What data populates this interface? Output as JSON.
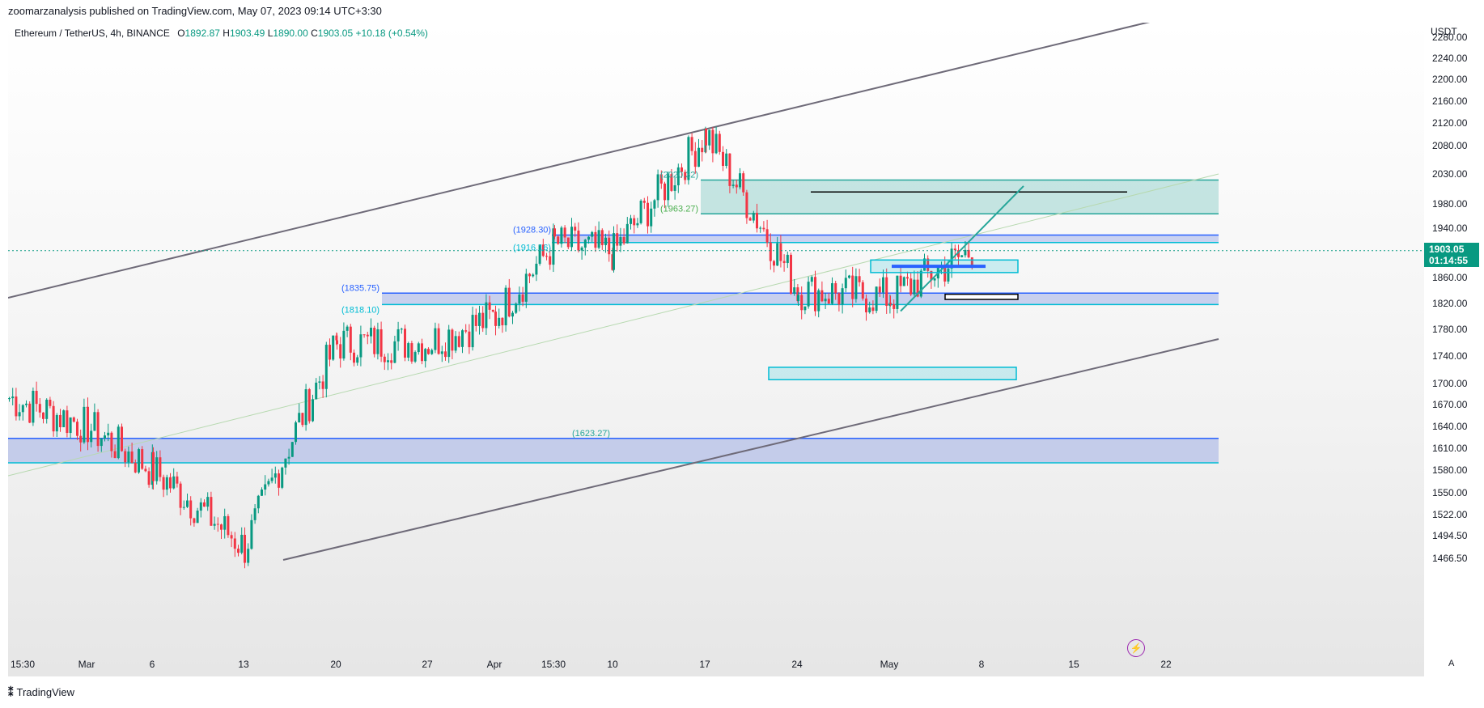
{
  "header": {
    "published": "zoomarzanalysis published on TradingView.com, May 07, 2023 09:14 UTC+3:30"
  },
  "legend": {
    "symbol": "Ethereum / TetherUS, 4h, BINANCE",
    "open_label": "O",
    "open": "1892.87",
    "high_label": "H",
    "high": "1903.49",
    "low_label": "L",
    "low": "1890.00",
    "close_label": "C",
    "close": "1903.05",
    "change": "+10.18 (+0.54%)"
  },
  "price_axis": {
    "unit": "USDT",
    "ticks": [
      "2280.00",
      "2240.00",
      "2200.00",
      "2160.00",
      "2120.00",
      "2080.00",
      "2030.00",
      "1980.00",
      "1940.00",
      "1900.00",
      "1860.00",
      "1820.00",
      "1780.00",
      "1740.00",
      "1700.00",
      "1670.00",
      "1640.00",
      "1610.00",
      "1580.00",
      "1550.00",
      "1522.00",
      "1494.50",
      "1466.50"
    ],
    "last_price": "1903.05",
    "countdown": "01:14:55"
  },
  "time_axis": {
    "ticks": [
      "15:30",
      "Mar",
      "6",
      "13",
      "20",
      "27",
      "Apr",
      "15:30",
      "10",
      "17",
      "24",
      "May",
      "8",
      "15",
      "22"
    ],
    "auto_label": "A"
  },
  "footer": {
    "brand": "TradingView"
  },
  "colors": {
    "up": "#089981",
    "down": "#f23645",
    "zone_blue": "#3f5fd8",
    "zone_green": "#26a69a",
    "channel": "#6e6a78",
    "accent_purple": "#9c27b0"
  },
  "chart_data": {
    "type": "candlestick",
    "title": "Ethereum / TetherUS, 4h, BINANCE",
    "y_axis": {
      "min": 1466.5,
      "max": 2280,
      "scale": "log",
      "unit": "USDT"
    },
    "x_axis": {
      "labels": [
        "15:30",
        "Mar",
        "6",
        "13",
        "20",
        "27",
        "Apr",
        "15:30",
        "10",
        "17",
        "24",
        "May",
        "8",
        "15",
        "22"
      ]
    },
    "price_path": [
      [
        "15:30",
        1680
      ],
      [
        "Mar",
        1640
      ],
      [
        "6",
        1580
      ],
      [
        "13",
        1480
      ],
      [
        "20",
        1760
      ],
      [
        "27",
        1760
      ],
      [
        "Apr",
        1800
      ],
      [
        "15:30",
        1915
      ],
      [
        "10",
        1900
      ],
      [
        "17",
        2100
      ],
      [
        "24",
        1840
      ],
      [
        "May",
        1830
      ],
      [
        "8",
        1903.05
      ]
    ],
    "annotations": [
      {
        "label": "(2020.32)",
        "value": 2020.32
      },
      {
        "label": "(1963.27)",
        "value": 1963.27
      },
      {
        "label": "(1928.30)",
        "value": 1928.3
      },
      {
        "label": "(1916.16)",
        "value": 1916.16
      },
      {
        "label": "(1835.75)",
        "value": 1835.75
      },
      {
        "label": "(1818.10)",
        "value": 1818.1
      },
      {
        "label": "(1623.27)",
        "value": 1623.27
      }
    ],
    "zones": [
      {
        "kind": "supply",
        "low": 1963.27,
        "high": 2020.32,
        "color": "#26a69a"
      },
      {
        "kind": "resistance",
        "low": 1916.16,
        "high": 1928.3,
        "color": "#3f5fd8"
      },
      {
        "kind": "support",
        "low": 1818.1,
        "high": 1835.75,
        "color": "#3f5fd8"
      },
      {
        "kind": "support",
        "low": 1590,
        "high": 1623.27,
        "color": "#3f5fd8"
      }
    ],
    "grid": false
  }
}
